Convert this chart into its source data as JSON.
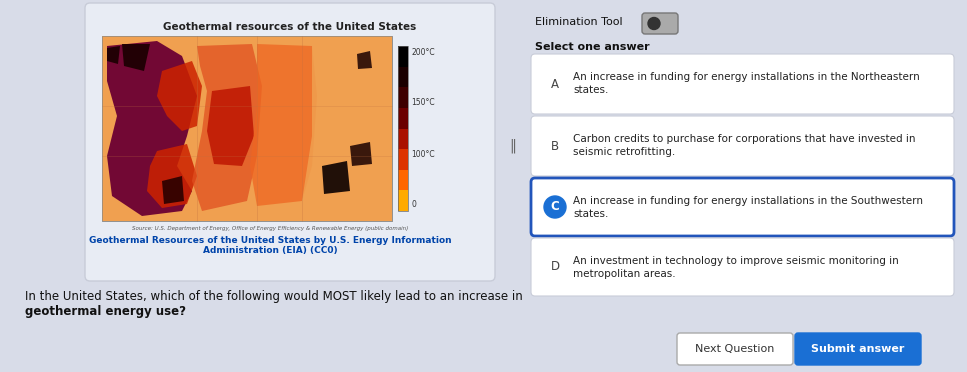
{
  "bg_color": "#d8dce8",
  "left_card_bg": "#e8ecf4",
  "left_card_border": "#c8ccd8",
  "map_box_bg": "#e0e4ee",
  "map_box_border": "#b8bcc8",
  "right_bg": "#e8ecf4",
  "map_title": "Geothermal resources of the United States",
  "map_caption": "Source: U.S. Department of Energy, Office of Energy Efficiency & Renewable Energy (public domain)",
  "map_subtitle_line1": "Geothermal Resources of the United States by U.S. Energy Information",
  "map_subtitle_line2": "Administration (EIA) (CC0)",
  "elimination_tool_label": "Elimination Tool",
  "select_label": "Select one answer",
  "question_line1": "In the United States, which of the following would MOST likely lead to an increase in",
  "question_line2": "geothermal energy use?",
  "answers": [
    {
      "label": "A",
      "text_line1": "An increase in funding for energy installations in the Northeastern",
      "text_line2": "states.",
      "selected": false,
      "eliminated": false
    },
    {
      "label": "B",
      "text_line1": "Carbon credits to purchase for corporations that have invested in",
      "text_line2": "seismic retrofitting.",
      "selected": false,
      "eliminated": true
    },
    {
      "label": "C",
      "text_line1": "An increase in funding for energy installations in the Southwestern",
      "text_line2": "states.",
      "selected": true,
      "eliminated": false
    },
    {
      "label": "D",
      "text_line1": "An investment in technology to improve seismic monitoring in",
      "text_line2": "metropolitan areas.",
      "selected": false,
      "eliminated": false
    }
  ],
  "btn_next_label": "Next Question",
  "btn_submit_label": "Submit answer",
  "btn_submit_color": "#1a6fd4",
  "selected_fill": "#1a6fd4",
  "selected_border": "#2255bb",
  "normal_border": "#c8ccd8",
  "answer_bg": "#ffffff",
  "answer_text_color": "#222222",
  "label_text_color": "#444444",
  "elim_color": "#666666",
  "toggle_bg": "#888888",
  "toggle_dot": "#222222",
  "cb_colors": [
    "#000000",
    "#1a0000",
    "#3d0000",
    "#6b0000",
    "#aa1100",
    "#dd3300",
    "#ff6600",
    "#ffaa00"
  ],
  "cb_top_label": "200°C",
  "cb_mid1_label": "150°C",
  "cb_mid2_label": "100°C",
  "cb_bot_label": "0"
}
